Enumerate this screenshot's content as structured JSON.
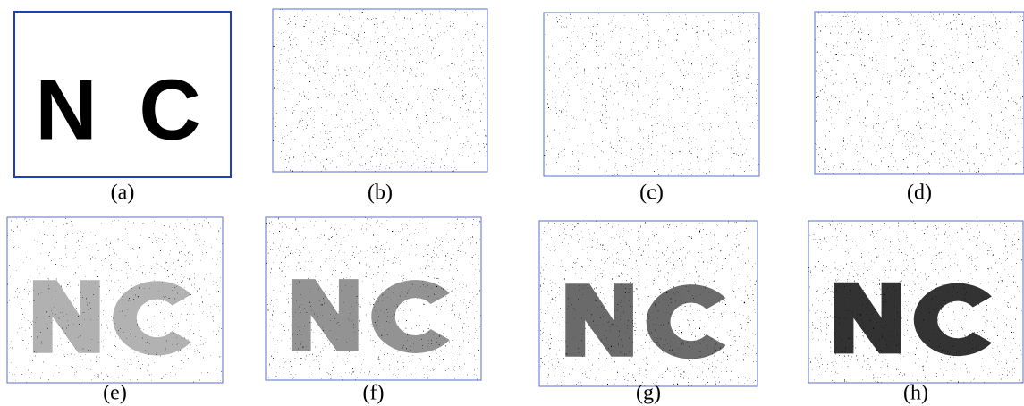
{
  "panels": [
    {
      "label": "(a)",
      "text": "N C"
    },
    {
      "label": "(b)"
    },
    {
      "label": "(c)"
    },
    {
      "label": "(d)"
    },
    {
      "label": "(e)"
    },
    {
      "label": "(f)"
    },
    {
      "label": "(g)"
    },
    {
      "label": "(h)"
    }
  ]
}
